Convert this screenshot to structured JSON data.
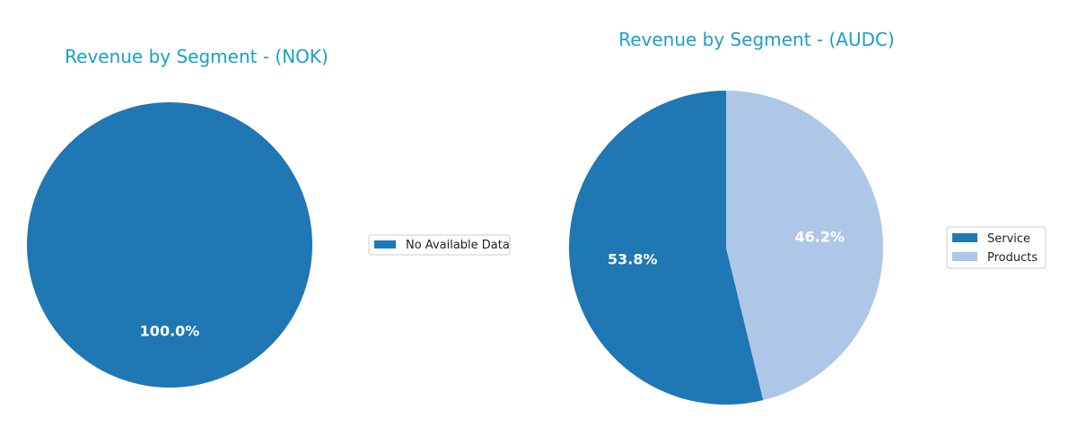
{
  "colors": {
    "title": "#1a9fc7",
    "service": "#1f77b4",
    "products": "#aec7e8"
  },
  "chart_data": [
    {
      "type": "pie",
      "title": "Revenue by Segment - (NOK)",
      "labels": [
        "No Available Data"
      ],
      "values": [
        100.0
      ],
      "pct_labels": [
        "100.0%"
      ],
      "colors": [
        "#1f77b4"
      ],
      "legend": "right"
    },
    {
      "type": "pie",
      "title": "Revenue by Segment - (AUDC)",
      "labels": [
        "Service",
        "Products"
      ],
      "values": [
        53.8,
        46.2
      ],
      "pct_labels": [
        "53.8%",
        "46.2%"
      ],
      "colors": [
        "#1f77b4",
        "#aec7e8"
      ],
      "legend": "right"
    }
  ]
}
